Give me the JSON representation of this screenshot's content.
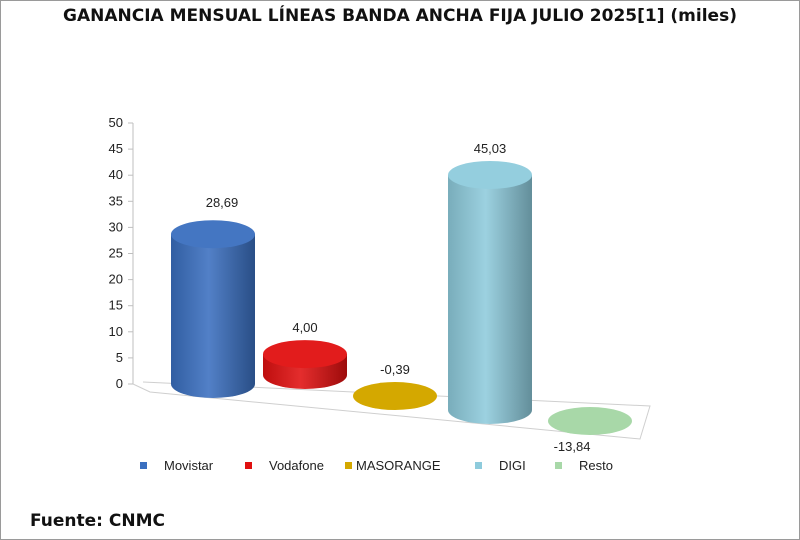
{
  "chart_data": {
    "type": "bar",
    "style": "3d-cylinder",
    "title": "GANANCIA MENSUAL LÍNEAS BANDA ANCHA FIJA JULIO 2025[1] (miles)",
    "categories": [
      "Movistar",
      "Vodafone",
      "MASORANGE",
      "DIGI",
      "Resto"
    ],
    "values": [
      28.69,
      4.0,
      -0.39,
      45.03,
      -13.84
    ],
    "value_labels": [
      "28,69",
      "4,00",
      "-0,39",
      "45,03",
      "-13,84"
    ],
    "colors": [
      "#3a6fbf",
      "#e01010",
      "#d4a800",
      "#8ecbdc",
      "#a8d8a8"
    ],
    "ylim": [
      0,
      50
    ],
    "yticks": [
      "0",
      "5",
      "10",
      "15",
      "20",
      "25",
      "30",
      "35",
      "40",
      "45",
      "50"
    ],
    "xlabel": "",
    "ylabel": "",
    "grid": false,
    "legend": {
      "position": "bottom",
      "entries": [
        "Movistar",
        "Vodafone",
        "MASORANGE",
        "DIGI",
        "Resto"
      ]
    }
  },
  "source": "Fuente: CNMC"
}
